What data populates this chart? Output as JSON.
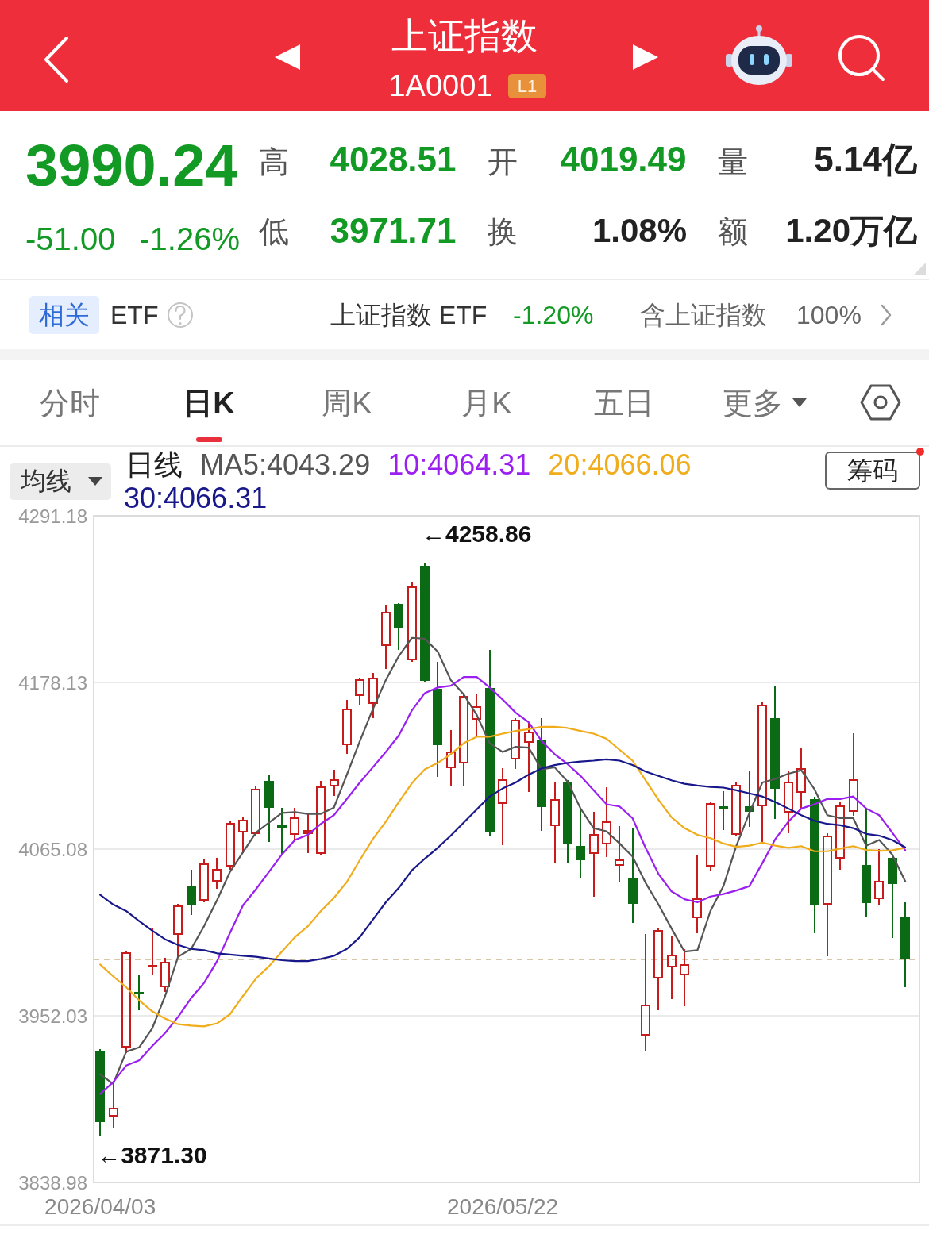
{
  "chart_data": {
    "type": "candlestick",
    "title": "上证指数",
    "subtitle": "1A0001",
    "categories": [
      "2026/04/03",
      null,
      null,
      null,
      null,
      null,
      null,
      null,
      null,
      null,
      null,
      null,
      null,
      null,
      null,
      null,
      null,
      null,
      null,
      null,
      null,
      null,
      null,
      null,
      null,
      null,
      null,
      null,
      null,
      null,
      null,
      "2026/05/22",
      null,
      null,
      null,
      null,
      null,
      null,
      null,
      null,
      null,
      null,
      null,
      null,
      null,
      null,
      null,
      null,
      null,
      null,
      null,
      null,
      null,
      null,
      null,
      null,
      null,
      null,
      null,
      null,
      null,
      null,
      null
    ],
    "ohlc": [
      [
        3928.5,
        3929.0,
        3871.3,
        3879.8
      ],
      [
        3883.6,
        3906.4,
        3876.8,
        3890.1
      ],
      [
        3930.0,
        3995.5,
        3927.1,
        3995.1
      ],
      [
        3968.5,
        3978.8,
        3956.6,
        3966.1
      ],
      [
        3984.7,
        4011.3,
        3980.3,
        3986.8
      ],
      [
        3971.4,
        3990.6,
        3968.5,
        3989.1
      ],
      [
        4006.9,
        4027.5,
        3992.1,
        4027.0
      ],
      [
        4040.0,
        4050.6,
        4021.1,
        4027.0
      ],
      [
        4029.9,
        4057.7,
        4029.5,
        4055.6
      ],
      [
        4042.9,
        4058.6,
        4038.8,
        4051.8
      ],
      [
        4052.7,
        4083.7,
        4051.8,
        4083.1
      ],
      [
        4076.3,
        4086.1,
        4063.0,
        4085.2
      ],
      [
        4074.8,
        4107.4,
        4074.5,
        4106.5
      ],
      [
        4111.8,
        4114.8,
        4070.4,
        4092.6
      ],
      [
        4081.4,
        4092.6,
        4061.6,
        4079.6
      ],
      [
        4074.3,
        4092.6,
        4071.9,
        4086.7
      ],
      [
        4074.8,
        4088.1,
        4063.0,
        4078.4
      ],
      [
        4061.6,
        4110.9,
        4061.3,
        4108.0
      ],
      [
        4107.4,
        4118.6,
        4101.5,
        4112.7
      ],
      [
        4135.4,
        4165.9,
        4130.4,
        4160.6
      ],
      [
        4168.8,
        4181.0,
        4163.5,
        4180.7
      ],
      [
        4163.5,
        4183.9,
        4154.7,
        4181.6
      ],
      [
        4202.6,
        4230.6,
        4188.0,
        4226.5
      ],
      [
        4231.5,
        4231.5,
        4201.0,
        4215.2
      ],
      [
        4193.1,
        4245.4,
        4192.8,
        4243.7
      ],
      [
        4257.5,
        4258.86,
        4178.6,
        4178.9
      ],
      [
        4173.9,
        4191.6,
        4114.7,
        4135.4
      ],
      [
        4119.8,
        4145.2,
        4108.8,
        4131.6
      ],
      [
        4122.7,
        4169.7,
        4108.0,
        4169.4
      ],
      [
        4152.3,
        4169.4,
        4141.3,
        4162.0
      ],
      [
        4174.7,
        4199.6,
        4074.3,
        4076.3
      ],
      [
        4095.5,
        4119.2,
        4068.3,
        4112.7
      ],
      [
        4125.7,
        4153.5,
        4119.8,
        4153.2
      ],
      [
        4136.9,
        4150.2,
        4104.4,
        4145.2
      ],
      [
        4139.3,
        4153.2,
        4077.8,
        4093.2
      ],
      [
        4080.2,
        4110.3,
        4056.5,
        4099.1
      ],
      [
        4110.9,
        4111.2,
        4056.5,
        4068.3
      ],
      [
        4067.5,
        4092.6,
        4045.9,
        4057.1
      ],
      [
        4061.6,
        4089.6,
        4033.5,
        4075.4
      ],
      [
        4068.3,
        4106.8,
        4060.1,
        4084.3
      ],
      [
        4053.6,
        4080.2,
        4043.8,
        4058.6
      ],
      [
        4045.3,
        4078.4,
        4015.7,
        4027.6
      ],
      [
        3938.3,
        4006.9,
        3928.5,
        3959.6
      ],
      [
        3977.3,
        4010.7,
        3956.6,
        4010.4
      ],
      [
        3984.7,
        4005.4,
        3964.0,
        3993.6
      ],
      [
        3979.4,
        3996.5,
        3959.0,
        3987.1
      ],
      [
        4017.8,
        4060.1,
        4008.3,
        4032.0
      ],
      [
        4052.7,
        4097.0,
        4051.2,
        4096.7
      ],
      [
        4094.4,
        4103.8,
        4078.4,
        4092.0
      ],
      [
        4074.3,
        4110.3,
        4074.0,
        4108.8
      ],
      [
        4094.4,
        4117.7,
        4080.8,
        4090.2
      ],
      [
        4094.1,
        4164.1,
        4070.4,
        4163.5
      ],
      [
        4154.1,
        4175.3,
        4086.1,
        4105.9
      ],
      [
        4089.6,
        4117.7,
        4076.3,
        4110.9
      ],
      [
        4102.9,
        4133.4,
        4093.2,
        4120.4
      ],
      [
        4099.1,
        4099.9,
        4008.3,
        4027.0
      ],
      [
        4027.0,
        4075.4,
        3992.7,
        4074.3
      ],
      [
        4058.6,
        4097.0,
        4051.8,
        4094.9
      ],
      [
        4090.2,
        4143.4,
        4088.1,
        4112.7
      ],
      [
        4054.7,
        4092.6,
        4019.3,
        4028.2
      ],
      [
        4031.1,
        4064.5,
        4027.6,
        4043.8
      ],
      [
        4059.5,
        4059.8,
        4005.4,
        4041.24
      ],
      [
        4019.49,
        4028.51,
        3971.71,
        3990.24
      ]
    ],
    "colors": [
      "#0a6b14",
      "#c81b1b",
      "#c81b1b",
      "#0a6b14",
      "#c81b1b",
      "#c81b1b",
      "#c81b1b",
      "#0a6b14",
      "#c81b1b",
      "#c81b1b",
      "#c81b1b",
      "#c81b1b",
      "#c81b1b",
      "#0a6b14",
      "#0a6b14",
      "#c81b1b",
      "#c81b1b",
      "#c81b1b",
      "#c81b1b",
      "#c81b1b",
      "#c81b1b",
      "#c81b1b",
      "#c81b1b",
      "#0a6b14",
      "#c81b1b",
      "#0a6b14",
      "#0a6b14",
      "#c81b1b",
      "#c81b1b",
      "#c81b1b",
      "#0a6b14",
      "#c81b1b",
      "#c81b1b",
      "#c81b1b",
      "#0a6b14",
      "#c81b1b",
      "#0a6b14",
      "#0a6b14",
      "#c81b1b",
      "#c81b1b",
      "#c81b1b",
      "#0a6b14",
      "#c81b1b",
      "#c81b1b",
      "#c81b1b",
      "#c81b1b",
      "#c81b1b",
      "#c81b1b",
      "#0a6b14",
      "#c81b1b",
      "#0a6b14",
      "#c81b1b",
      "#0a6b14",
      "#c81b1b",
      "#c81b1b",
      "#0a6b14",
      "#c81b1b",
      "#c81b1b",
      "#c81b1b",
      "#0a6b14",
      "#c81b1b",
      "#0a6b14",
      "#0a6b14"
    ],
    "series": [
      {
        "type": "line",
        "name": "MA5:4043.29",
        "color": "#555555",
        "values": [
          3912.3,
          3905.8,
          3927.6,
          3930.6,
          3943.3,
          3965.5,
          3992.1,
          3997.4,
          4012.8,
          4030.5,
          4049.7,
          4063.0,
          4076.3,
          4083.1,
          4089.6,
          4090.2,
          4089.0,
          4089.0,
          4093.2,
          4115.6,
          4138.4,
          4160.0,
          4179.8,
          4196.0,
          4208.4,
          4207.8,
          4199.0,
          4179.8,
          4170.0,
          4156.1,
          4136.9,
          4131.0,
          4134.5,
          4133.9,
          4119.2,
          4120.6,
          4110.9,
          4092.6,
          4079.3,
          4077.2,
          4068.9,
          4060.1,
          4042.3,
          4027.5,
          4011.3,
          3995.6,
          3996.5,
          4023.1,
          4040.0,
          4067.4,
          4089.6,
          4110.3,
          4112.7,
          4116.2,
          4118.6,
          4105.9,
          4088.1,
          4086.1,
          4086.1,
          4067.4,
          4071.3,
          4061.5,
          4043.29
        ]
      },
      {
        "type": "line",
        "name": "10:4064.31",
        "color": "#9b1ff0",
        "values": [
          3899.0,
          3907.0,
          3918.2,
          3921.7,
          3931.5,
          3940.3,
          3951.3,
          3964.0,
          3974.3,
          3989.1,
          4008.3,
          4027.0,
          4037.9,
          4049.7,
          4061.5,
          4071.3,
          4074.8,
          4082.2,
          4088.1,
          4099.1,
          4110.3,
          4120.6,
          4131.0,
          4142.2,
          4159.1,
          4170.9,
          4174.7,
          4175.9,
          4181.8,
          4181.8,
          4174.7,
          4166.5,
          4157.6,
          4151.1,
          4138.4,
          4129.5,
          4122.7,
          4114.7,
          4105.0,
          4095.5,
          4094.0,
          4086.1,
          4066.0,
          4048.2,
          4036.4,
          4031.1,
          4029.0,
          4032.9,
          4034.6,
          4037.0,
          4040.0,
          4055.6,
          4071.9,
          4083.7,
          4092.6,
          4095.5,
          4099.1,
          4099.1,
          4100.8,
          4092.6,
          4088.1,
          4076.3,
          4064.31
        ]
      },
      {
        "type": "line",
        "name": "20:4066.06",
        "color": "#f0ac1a",
        "values": [
          3986.8,
          3978.8,
          3971.4,
          3962.5,
          3955.1,
          3950.1,
          3946.3,
          3945.4,
          3944.8,
          3946.9,
          3953.1,
          3965.5,
          3977.3,
          3985.6,
          3995.6,
          4005.4,
          4012.8,
          4023.1,
          4032.0,
          4042.9,
          4057.7,
          4071.9,
          4083.7,
          4097.0,
          4109.7,
          4119.2,
          4123.6,
          4129.5,
          4136.9,
          4141.3,
          4141.3,
          4143.4,
          4145.2,
          4146.4,
          4148.1,
          4148.1,
          4147.2,
          4145.2,
          4143.4,
          4139.9,
          4132.5,
          4125.1,
          4111.8,
          4098.5,
          4086.7,
          4079.3,
          4074.8,
          4072.5,
          4068.9,
          4066.6,
          4067.4,
          4069.5,
          4067.4,
          4066.0,
          4067.1,
          4063.6,
          4063.6,
          4065.4,
          4067.1,
          4064.5,
          4063.9,
          4064.2,
          4066.06
        ]
      },
      {
        "type": "line",
        "name": "30:4066.31",
        "color": "#18188a",
        "values": [
          4034.0,
          4027.5,
          4023.1,
          4016.3,
          4009.8,
          4003.9,
          4000.1,
          3997.4,
          3996.5,
          3994.4,
          3993.6,
          3992.7,
          3992.1,
          3990.9,
          3989.7,
          3989.1,
          3989.1,
          3990.6,
          3992.7,
          3997.4,
          4005.4,
          4017.2,
          4029.0,
          4038.8,
          4050.6,
          4058.6,
          4066.0,
          4074.2,
          4083.1,
          4092.0,
          4100.8,
          4106.2,
          4110.3,
          4115.6,
          4119.8,
          4122.1,
          4123.6,
          4124.5,
          4125.1,
          4126.0,
          4125.1,
          4122.1,
          4117.7,
          4114.7,
          4111.8,
          4109.4,
          4108.2,
          4107.3,
          4106.8,
          4105.0,
          4102.9,
          4100.8,
          4097.0,
          4092.6,
          4088.1,
          4084.3,
          4082.2,
          4081.3,
          4079.3,
          4075.4,
          4074.2,
          4071.3,
          4066.31
        ]
      }
    ],
    "ylim": [
      3838.98,
      4291.18
    ],
    "yticks": [
      4291.18,
      4178.13,
      4065.08,
      3952.03,
      3838.98
    ],
    "grid": "y",
    "legend": "top left",
    "legend_title": "日线",
    "ref_lines": [
      {
        "axis": "y",
        "value": 3990.24,
        "color": "#c9b58c",
        "line_style": "dashed"
      }
    ],
    "annotations": [
      "L1",
      "3990.24",
      "-51.00",
      "-1.26%",
      "高",
      "4028.51",
      "开",
      "4019.49",
      "量",
      "5.14亿",
      "低",
      "3971.71",
      "换",
      "1.08%",
      "额",
      "1.20万亿",
      "相关",
      "ETF",
      "上证指数 ETF",
      "-1.20%",
      "含上证指数",
      "100%",
      "分时",
      "日K",
      "周K",
      "月K",
      "五日",
      "更多",
      "均线",
      "筹码",
      "←4258.86",
      "←3871.30"
    ]
  }
}
